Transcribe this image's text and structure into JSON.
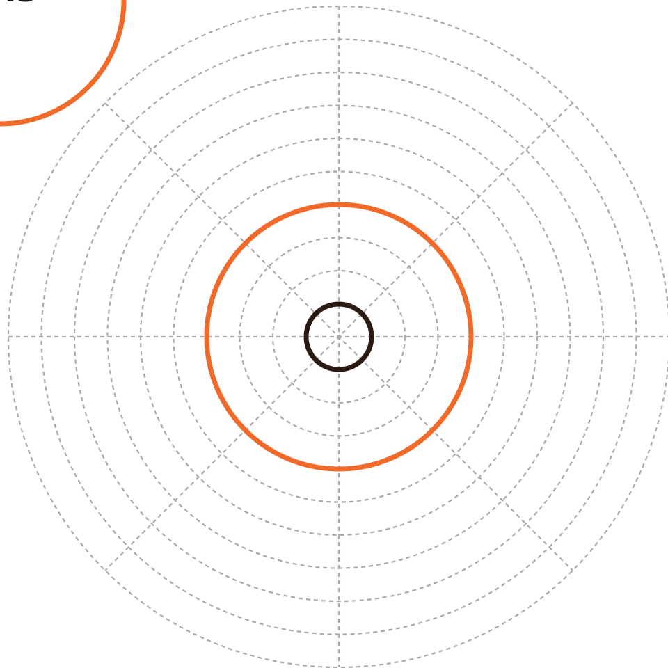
{
  "logo": {
    "visible_text": "KS"
  },
  "colors": {
    "background": "#ffffff",
    "guide": "#aaaaaa",
    "accent_orange": "#f26a2a",
    "dark_ring": "#2a1a12",
    "logo_text": "#1a1a1a"
  },
  "icons": {
    "guide_grid": "concentric-dashed-grid-icon",
    "inner_ring": "small-dark-ring-icon",
    "middle_ring": "orange-ring-icon",
    "corner_ring": "corner-orange-ring-icon"
  }
}
